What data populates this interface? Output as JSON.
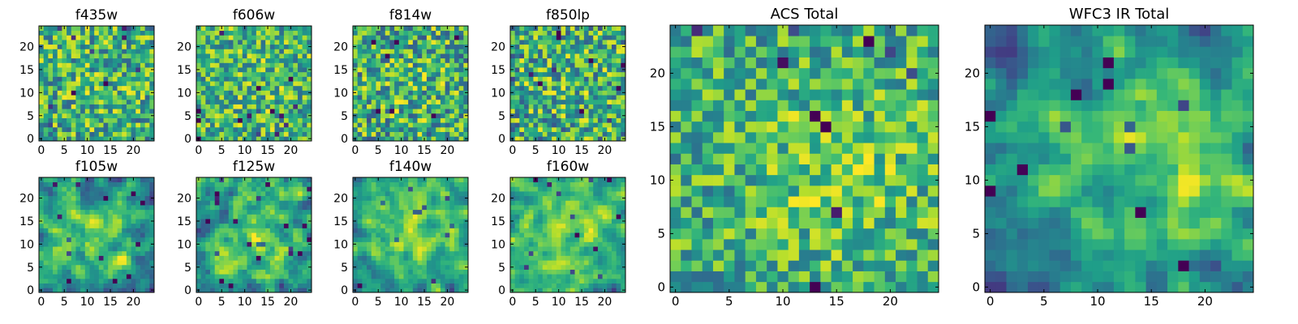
{
  "chart_data": [
    {
      "type": "heatmap",
      "title": "f435w",
      "colormap": "viridis",
      "grid": false,
      "xlim": [
        -0.5,
        24.5
      ],
      "ylim": [
        -0.5,
        24.5
      ],
      "xticks": [
        "0",
        "5",
        "10",
        "15",
        "20"
      ],
      "yticks": [
        "0",
        "5",
        "10",
        "15",
        "20"
      ],
      "size": 25,
      "seed": 11,
      "smooth": 0,
      "base": 0.62,
      "noise": 0.34,
      "blob": {
        "cx": 12,
        "cy": 12,
        "r": 8,
        "amp": 0.05
      }
    },
    {
      "type": "heatmap",
      "title": "f606w",
      "colormap": "viridis",
      "grid": false,
      "xlim": [
        -0.5,
        24.5
      ],
      "ylim": [
        -0.5,
        24.5
      ],
      "xticks": [
        "0",
        "5",
        "10",
        "15",
        "20"
      ],
      "yticks": [
        "0",
        "5",
        "10",
        "15",
        "20"
      ],
      "size": 25,
      "seed": 23,
      "smooth": 0,
      "base": 0.64,
      "noise": 0.32,
      "blob": {
        "cx": 12,
        "cy": 12,
        "r": 8,
        "amp": 0.05
      }
    },
    {
      "type": "heatmap",
      "title": "f814w",
      "colormap": "viridis",
      "grid": false,
      "xlim": [
        -0.5,
        24.5
      ],
      "ylim": [
        -0.5,
        24.5
      ],
      "xticks": [
        "0",
        "5",
        "10",
        "15",
        "20"
      ],
      "yticks": [
        "0",
        "5",
        "10",
        "15",
        "20"
      ],
      "size": 25,
      "seed": 37,
      "smooth": 0,
      "base": 0.6,
      "noise": 0.36,
      "blob": {
        "cx": 12,
        "cy": 12,
        "r": 8,
        "amp": 0.06
      }
    },
    {
      "type": "heatmap",
      "title": "f850lp",
      "colormap": "viridis",
      "grid": false,
      "xlim": [
        -0.5,
        24.5
      ],
      "ylim": [
        -0.5,
        24.5
      ],
      "xticks": [
        "0",
        "5",
        "10",
        "15",
        "20"
      ],
      "yticks": [
        "0",
        "5",
        "10",
        "15",
        "20"
      ],
      "size": 25,
      "seed": 41,
      "smooth": 0,
      "base": 0.6,
      "noise": 0.36,
      "blob": {
        "cx": 12,
        "cy": 12,
        "r": 8,
        "amp": 0.06
      }
    },
    {
      "type": "heatmap",
      "title": "f105w",
      "colormap": "viridis",
      "grid": false,
      "xlim": [
        -0.5,
        24.5
      ],
      "ylim": [
        -0.5,
        24.5
      ],
      "xticks": [
        "0",
        "5",
        "10",
        "15",
        "20"
      ],
      "yticks": [
        "0",
        "5",
        "10",
        "15",
        "20"
      ],
      "size": 25,
      "seed": 53,
      "smooth": 1,
      "base": 0.5,
      "noise": 0.38,
      "blob": {
        "cx": 13,
        "cy": 12,
        "r": 7,
        "amp": 0.22
      }
    },
    {
      "type": "heatmap",
      "title": "f125w",
      "colormap": "viridis",
      "grid": false,
      "xlim": [
        -0.5,
        24.5
      ],
      "ylim": [
        -0.5,
        24.5
      ],
      "xticks": [
        "0",
        "5",
        "10",
        "15",
        "20"
      ],
      "yticks": [
        "0",
        "5",
        "10",
        "15",
        "20"
      ],
      "size": 25,
      "seed": 67,
      "smooth": 1,
      "base": 0.52,
      "noise": 0.38,
      "blob": {
        "cx": 12,
        "cy": 12,
        "r": 7,
        "amp": 0.2
      }
    },
    {
      "type": "heatmap",
      "title": "f140w",
      "colormap": "viridis",
      "grid": false,
      "xlim": [
        -0.5,
        24.5
      ],
      "ylim": [
        -0.5,
        24.5
      ],
      "xticks": [
        "0",
        "5",
        "10",
        "15",
        "20"
      ],
      "yticks": [
        "0",
        "5",
        "10",
        "15",
        "20"
      ],
      "size": 25,
      "seed": 79,
      "smooth": 1,
      "base": 0.5,
      "noise": 0.34,
      "blob": {
        "cx": 12,
        "cy": 13,
        "r": 7,
        "amp": 0.32
      }
    },
    {
      "type": "heatmap",
      "title": "f160w",
      "colormap": "viridis",
      "grid": false,
      "xlim": [
        -0.5,
        24.5
      ],
      "ylim": [
        -0.5,
        24.5
      ],
      "xticks": [
        "0",
        "5",
        "10",
        "15",
        "20"
      ],
      "yticks": [
        "0",
        "5",
        "10",
        "15",
        "20"
      ],
      "size": 25,
      "seed": 83,
      "smooth": 1,
      "base": 0.5,
      "noise": 0.36,
      "blob": {
        "cx": 13,
        "cy": 12,
        "r": 7,
        "amp": 0.3
      }
    },
    {
      "type": "heatmap",
      "title": "ACS Total",
      "colormap": "viridis",
      "grid": false,
      "xlim": [
        -0.5,
        24.5
      ],
      "ylim": [
        -0.5,
        24.5
      ],
      "xticks": [
        "0",
        "5",
        "10",
        "15",
        "20"
      ],
      "yticks": [
        "0",
        "5",
        "10",
        "15",
        "20"
      ],
      "size": 25,
      "seed": 97,
      "smooth": 0,
      "base": 0.62,
      "noise": 0.28,
      "blob": {
        "cx": 15,
        "cy": 11,
        "r": 6,
        "amp": 0.14
      }
    },
    {
      "type": "heatmap",
      "title": "WFC3 IR Total",
      "colormap": "viridis",
      "grid": false,
      "xlim": [
        -0.5,
        24.5
      ],
      "ylim": [
        -0.5,
        24.5
      ],
      "xticks": [
        "0",
        "5",
        "10",
        "15",
        "20"
      ],
      "yticks": [
        "0",
        "5",
        "10",
        "15",
        "20"
      ],
      "size": 25,
      "seed": 109,
      "smooth": 1,
      "base": 0.42,
      "noise": 0.34,
      "blob": {
        "cx": 14,
        "cy": 12,
        "r": 7,
        "amp": 0.45
      }
    }
  ]
}
